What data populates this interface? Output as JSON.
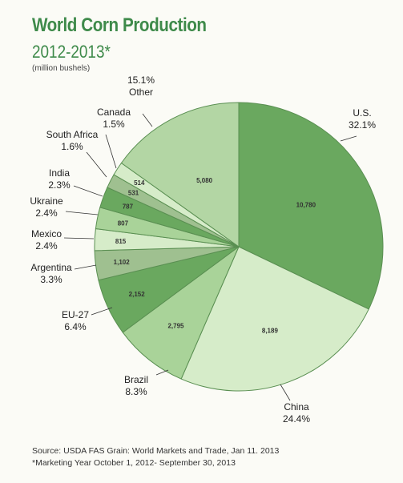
{
  "header": {
    "title": "World Corn Production",
    "subtitle": "2012-2013*",
    "units": "(million bushels)"
  },
  "footer": {
    "source": "Source: USDA FAS Grain: World Markets and Trade, Jan 11. 2013",
    "note": "*Marketing Year October 1, 2012- September 30, 2013"
  },
  "chart_data": {
    "type": "pie",
    "title": "World Corn Production",
    "subtitle": "2012-2013*",
    "unit": "(million bushels)",
    "start": "12 o'clock, clockwise",
    "slices": [
      {
        "name": "U.S.",
        "value": 10780,
        "value_label": "10,780",
        "percent": "32.1%",
        "color": "#6aa85f"
      },
      {
        "name": "China",
        "value": 8189,
        "value_label": "8,189",
        "percent": "24.4%",
        "color": "#d6ecc9"
      },
      {
        "name": "Brazil",
        "value": 2795,
        "value_label": "2,795",
        "percent": "8.3%",
        "color": "#a9d399"
      },
      {
        "name": "EU-27",
        "value": 2152,
        "value_label": "2,152",
        "percent": "6.4%",
        "color": "#6aa85f"
      },
      {
        "name": "Argentina",
        "value": 1102,
        "value_label": "1,102",
        "percent": "3.3%",
        "color": "#9fc090"
      },
      {
        "name": "Mexico",
        "value": 815,
        "value_label": "815",
        "percent": "2.4%",
        "color": "#d6ecc9"
      },
      {
        "name": "Ukraine",
        "value": 807,
        "value_label": "807",
        "percent": "2.4%",
        "color": "#a9d399"
      },
      {
        "name": "India",
        "value": 787,
        "value_label": "787",
        "percent": "2.3%",
        "color": "#6aa85f"
      },
      {
        "name": "South Africa",
        "value": 531,
        "value_label": "531",
        "percent": "1.6%",
        "color": "#9fc090"
      },
      {
        "name": "Canada",
        "value": 514,
        "value_label": "514",
        "percent": "1.5%",
        "color": "#d6ecc9"
      },
      {
        "name": "Other",
        "value": 5080,
        "value_label": "5,080",
        "percent": "15.1%",
        "color": "#b3d6a4"
      }
    ]
  }
}
